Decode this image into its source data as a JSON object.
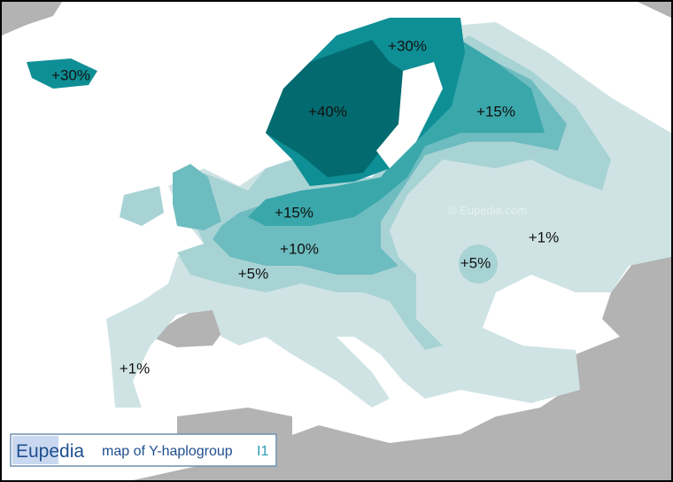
{
  "map": {
    "brand": "Eupedia",
    "title": "map of Y-haplogroup",
    "haplogroup": "I1",
    "watermark": "© Eupedia.com",
    "labels": [
      "+30%",
      "+30%",
      "+40%",
      "+15%",
      "+15%",
      "+10%",
      "+5%",
      "+5%",
      "+1%",
      "+1%"
    ]
  }
}
